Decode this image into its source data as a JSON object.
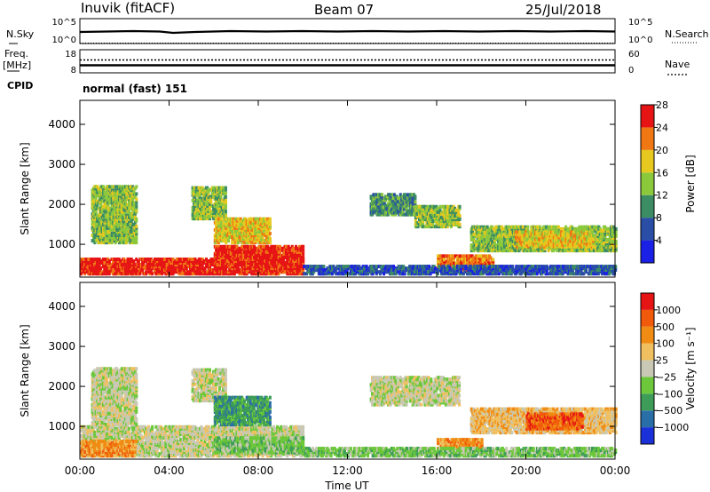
{
  "header": {
    "station": "Inuvik (fitACF)",
    "beam": "Beam 07",
    "date": "25/Jul/2018"
  },
  "status_panels": {
    "nsky_label": "N.Sky",
    "nsearch_label": "N.Search",
    "freq_label": "Freq.",
    "freq_unit": "[MHz]",
    "nave_label": "Nave",
    "cpid_label": "CPID",
    "cpid_value": "normal (fast) 151",
    "noise_left_ticks": [
      "10^5",
      "10^0"
    ],
    "noise_right_ticks": [
      "10^5",
      "10^0"
    ],
    "freq_left_ticks": [
      "18",
      "8"
    ],
    "nave_right_ticks": [
      "60",
      "0"
    ]
  },
  "chart_data": [
    {
      "type": "heatmap",
      "name": "power-panel",
      "ylabel": "Slant Range [km]",
      "xlabel": "Time UT",
      "x_ticks": [
        "00:00",
        "04:00",
        "08:00",
        "12:00",
        "16:00",
        "20:00",
        "00:00"
      ],
      "y_ticks": [
        "1000",
        "2000",
        "3000",
        "4000"
      ],
      "ylim": [
        180,
        4600
      ],
      "colorbar": {
        "label": "Power [dB]",
        "tick_labels": [
          "4",
          "8",
          "12",
          "16",
          "20",
          "24",
          "28"
        ],
        "colors": [
          "#1a20e6",
          "#2a4ea6",
          "#3c8c64",
          "#8cc83c",
          "#e6c81e",
          "#f07814",
          "#e61414"
        ]
      },
      "regions": [
        {
          "t": [
            0.0,
            6.0
          ],
          "range": [
            220,
            600
          ],
          "level": 6
        },
        {
          "t": [
            6.0,
            10.0
          ],
          "range": [
            220,
            900
          ],
          "level": 6
        },
        {
          "t": [
            0.5,
            2.5
          ],
          "range": [
            1000,
            2400
          ],
          "level": 3
        },
        {
          "t": [
            5.0,
            6.5
          ],
          "range": [
            1600,
            2400
          ],
          "level": 3
        },
        {
          "t": [
            6.0,
            8.5
          ],
          "range": [
            1000,
            1600
          ],
          "level": 4
        },
        {
          "t": [
            13.0,
            15.0
          ],
          "range": [
            1700,
            2200
          ],
          "level": 2
        },
        {
          "t": [
            15.0,
            17.0
          ],
          "range": [
            1400,
            1900
          ],
          "level": 3
        },
        {
          "t": [
            16.0,
            18.5
          ],
          "range": [
            300,
            700
          ],
          "level": 5
        },
        {
          "t": [
            17.5,
            24.0
          ],
          "range": [
            800,
            1400
          ],
          "level": 3
        },
        {
          "t": [
            19.5,
            23.0
          ],
          "range": [
            900,
            1300
          ],
          "level": 4
        },
        {
          "t": [
            10.0,
            24.0
          ],
          "range": [
            220,
            420
          ],
          "level": 1
        }
      ]
    },
    {
      "type": "heatmap",
      "name": "velocity-panel",
      "ylabel": "Slant Range [km]",
      "xlabel": "Time UT",
      "x_ticks": [
        "00:00",
        "04:00",
        "08:00",
        "12:00",
        "16:00",
        "20:00",
        "00:00"
      ],
      "y_ticks": [
        "1000",
        "2000",
        "3000",
        "4000"
      ],
      "ylim": [
        180,
        4600
      ],
      "colorbar": {
        "label": "Velocity [m s⁻¹]",
        "tick_labels": [
          "1000",
          "500",
          "100",
          "25",
          "−25",
          "−100",
          "−500",
          "−1000"
        ],
        "colors": [
          "#1a30d8",
          "#2a6ea8",
          "#3c9c58",
          "#6cc83a",
          "#c8c8b4",
          "#f0c060",
          "#f08c14",
          "#f05a0a",
          "#e61414"
        ]
      },
      "regions": [
        {
          "t": [
            0.0,
            10.0
          ],
          "range": [
            220,
            950
          ],
          "level": 4
        },
        {
          "t": [
            0.0,
            2.5
          ],
          "range": [
            220,
            600
          ],
          "level": 6
        },
        {
          "t": [
            6.0,
            10.0
          ],
          "range": [
            300,
            700
          ],
          "level": 3
        },
        {
          "t": [
            0.5,
            2.5
          ],
          "range": [
            1000,
            2400
          ],
          "level": 4
        },
        {
          "t": [
            5.0,
            6.5
          ],
          "range": [
            1600,
            2400
          ],
          "level": 4
        },
        {
          "t": [
            6.0,
            8.5
          ],
          "range": [
            1000,
            1700
          ],
          "level": 2
        },
        {
          "t": [
            13.0,
            17.0
          ],
          "range": [
            1500,
            2200
          ],
          "level": 4
        },
        {
          "t": [
            16.0,
            18.0
          ],
          "range": [
            350,
            650
          ],
          "level": 6
        },
        {
          "t": [
            17.5,
            24.0
          ],
          "range": [
            800,
            1400
          ],
          "level": 5
        },
        {
          "t": [
            20.0,
            22.5
          ],
          "range": [
            900,
            1300
          ],
          "level": 7
        },
        {
          "t": [
            10.0,
            24.0
          ],
          "range": [
            220,
            420
          ],
          "level": 3
        }
      ]
    }
  ]
}
